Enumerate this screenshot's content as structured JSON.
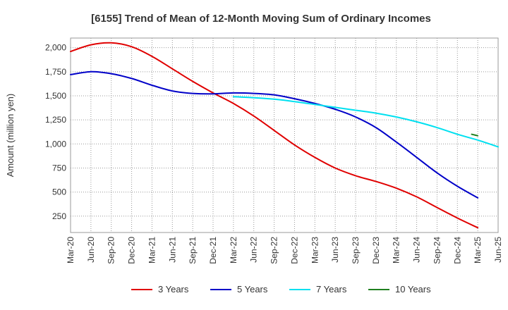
{
  "chart_data": {
    "type": "line",
    "title": "[6155]  Trend of Mean of 12-Month Moving Sum of Ordinary Incomes",
    "xlabel": "",
    "ylabel": "Amount (million yen)",
    "ylim": [
      80,
      2100
    ],
    "yticks": [
      250,
      500,
      750,
      "1,000",
      "1,250",
      "1,500",
      "1,750",
      "2,000"
    ],
    "ytick_values": [
      250,
      500,
      750,
      1000,
      1250,
      1500,
      1750,
      2000
    ],
    "xticks": [
      "Mar-20",
      "Jun-20",
      "Sep-20",
      "Dec-20",
      "Mar-21",
      "Jun-21",
      "Sep-21",
      "Dec-21",
      "Mar-22",
      "Jun-22",
      "Sep-22",
      "Dec-22",
      "Mar-23",
      "Jun-23",
      "Sep-23",
      "Dec-23",
      "Mar-24",
      "Jun-24",
      "Sep-24",
      "Dec-24",
      "Mar-25",
      "Jun-25"
    ],
    "grid": true,
    "legend_position": "bottom",
    "series": [
      {
        "name": "3 Years",
        "color": "#e00000",
        "start_index": 0,
        "values": [
          1960,
          2030,
          2050,
          2010,
          1910,
          1780,
          1650,
          1530,
          1420,
          1290,
          1140,
          990,
          860,
          750,
          670,
          610,
          540,
          450,
          340,
          230,
          130
        ]
      },
      {
        "name": "5 Years",
        "color": "#0000c8",
        "start_index": 0,
        "values": [
          1720,
          1750,
          1730,
          1680,
          1610,
          1550,
          1525,
          1520,
          1530,
          1525,
          1510,
          1470,
          1420,
          1360,
          1280,
          1170,
          1020,
          860,
          700,
          560,
          440
        ]
      },
      {
        "name": "7 Years",
        "color": "#00e0f0",
        "start_index": 8,
        "values": [
          1490,
          1480,
          1465,
          1440,
          1410,
          1380,
          1350,
          1320,
          1280,
          1230,
          1170,
          1100,
          1040,
          970
        ]
      },
      {
        "name": "10 Years",
        "color": "#208020",
        "start_index": 19.7,
        "values": [
          1100,
          1085
        ]
      }
    ]
  }
}
